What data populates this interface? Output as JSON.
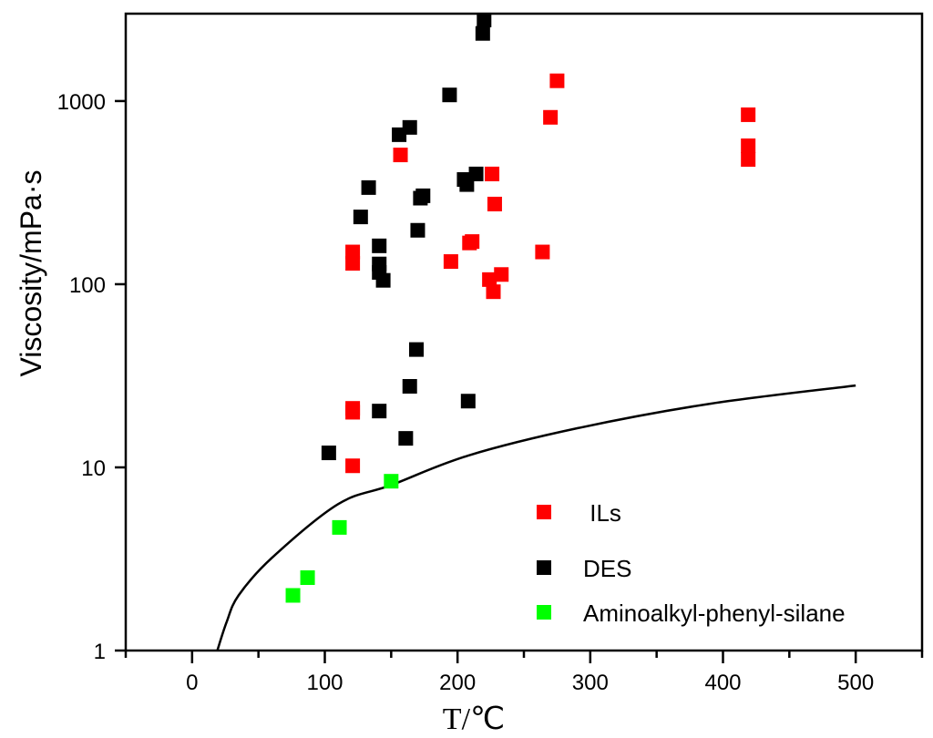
{
  "chart_data": {
    "type": "scatter",
    "title": "",
    "xlabel": "T/℃",
    "ylabel": "Viscosity/mPa·s",
    "xlim": [
      -50,
      550
    ],
    "ylim": [
      1,
      3000
    ],
    "yscale": "log",
    "grid": false,
    "legend_position": "bottom-right",
    "x_ticks": [
      0,
      100,
      200,
      300,
      400,
      500
    ],
    "x_tick_labels": [
      "0",
      "100",
      "200",
      "300",
      "400",
      "500"
    ],
    "y_ticks": [
      1,
      10,
      100,
      1000
    ],
    "y_tick_labels": [
      "1",
      "10",
      "100",
      "1000"
    ],
    "series": [
      {
        "name": " ILs",
        "color": "#ff0000",
        "points": [
          [
            121,
            150
          ],
          [
            121,
            130
          ],
          [
            157,
            508
          ],
          [
            226,
            400
          ],
          [
            228,
            274
          ],
          [
            211,
            171
          ],
          [
            209,
            168
          ],
          [
            195,
            133
          ],
          [
            233,
            113
          ],
          [
            224,
            106
          ],
          [
            227,
            91
          ],
          [
            264,
            150
          ],
          [
            275,
            1290
          ],
          [
            270,
            815
          ],
          [
            419,
            842
          ],
          [
            419,
            570
          ],
          [
            419,
            480
          ],
          [
            121,
            21
          ],
          [
            121,
            20
          ],
          [
            121,
            10.2
          ]
        ]
      },
      {
        "name": "DES",
        "color": "#000000",
        "points": [
          [
            220,
            2770
          ],
          [
            219,
            2340
          ],
          [
            194,
            1080
          ],
          [
            164,
            718
          ],
          [
            156,
            655
          ],
          [
            133,
            337
          ],
          [
            127,
            233
          ],
          [
            174,
            304
          ],
          [
            172,
            295
          ],
          [
            170,
            197
          ],
          [
            141,
            162
          ],
          [
            141,
            129
          ],
          [
            141,
            116
          ],
          [
            144,
            105
          ],
          [
            214,
            400
          ],
          [
            205,
            373
          ],
          [
            207,
            350
          ],
          [
            169,
            44
          ],
          [
            164,
            27.7
          ],
          [
            141,
            20.3
          ],
          [
            208,
            23
          ],
          [
            161,
            14.4
          ],
          [
            103,
            12
          ]
        ]
      },
      {
        "name": "Aminoalkyl-phenyl-silane",
        "color": "#00ff00",
        "points": [
          [
            150,
            8.4
          ],
          [
            111,
            4.7
          ],
          [
            87,
            2.5
          ],
          [
            76,
            2.0
          ]
        ]
      }
    ],
    "curve": {
      "color": "#000000",
      "points": [
        [
          19,
          1
        ],
        [
          26,
          1.43
        ],
        [
          35,
          2.0
        ],
        [
          60,
          3.2
        ],
        [
          110,
          6.3
        ],
        [
          150,
          8.0
        ],
        [
          208,
          11.6
        ],
        [
          291,
          16.4
        ],
        [
          391,
          22.3
        ],
        [
          500,
          28
        ]
      ]
    }
  }
}
